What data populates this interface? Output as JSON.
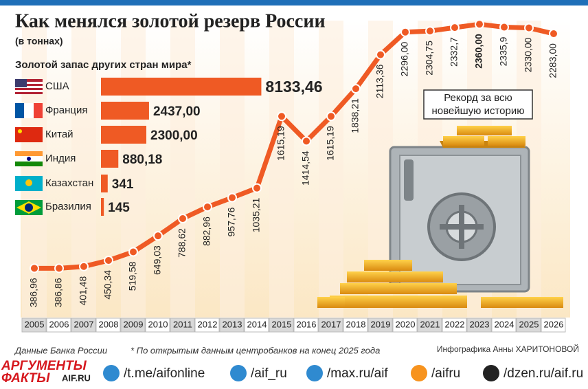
{
  "chart_data": [
    {
      "type": "line",
      "title": "Как менялся золотой резерв России",
      "subtitle": "(в тоннах)",
      "categories": [
        "2005",
        "2006",
        "2007",
        "2008",
        "2009",
        "2010",
        "2011",
        "2012",
        "2013",
        "2014",
        "2015",
        "2016",
        "2017",
        "2018",
        "2019",
        "2020",
        "2021",
        "2022",
        "2023",
        "2024",
        "2025",
        "2026"
      ],
      "series": [
        {
          "color": "#ef5a24",
          "values": [
            386.96,
            386.86,
            401.48,
            450.34,
            519.58,
            649.03,
            788.62,
            882.96,
            957.76,
            1035.21,
            1615.19,
            1414.54,
            1615.19,
            1838.21,
            2113.36,
            2296.0,
            2304.75,
            2332.7,
            2360.0,
            2335.9,
            2330.0,
            2283.0
          ],
          "value_labels": [
            "386,96",
            "386,86",
            "401,48",
            "450,34",
            "519,58",
            "649,03",
            "788,62",
            "882,96",
            "957,76",
            "1035,21",
            "1615,19",
            "1414,54",
            "1615,19",
            "1838,21",
            "2113,36",
            "2296,00",
            "2304,75",
            "2332,7",
            "2360,00",
            "2335,9",
            "2330,00",
            "2283,00"
          ]
        }
      ],
      "annotation": [
        "Рекорд за всю",
        "новейшую историю"
      ]
    },
    {
      "type": "hbar",
      "title": "Золотой запас других стран мира*",
      "color": "#ef5a24",
      "categories": [
        "США",
        "Франция",
        "Китай",
        "Индия",
        "Казахстан",
        "Бразилия"
      ],
      "values": [
        8133.46,
        2437.0,
        2300.0,
        880.18,
        341,
        145
      ],
      "value_labels": [
        "8133,46",
        "2437,00",
        "2300,00",
        "880,18",
        "341",
        "145"
      ]
    }
  ],
  "footer": {
    "source": "Данные Банка России",
    "note": "* По открытым данным центробанков на конец 2025 года",
    "author": "Инфографика Анны ХАРИТОНОВОЙ"
  },
  "logo": {
    "line1": "АРГУМЕНТЫ",
    "line2": "ФАКТЫ",
    "site": "AIF.RU"
  },
  "social": [
    "/t.me/aifonline",
    "/aif_ru",
    "/max.ru/aif",
    "/aifru",
    "/dzen.ru/aif.ru"
  ]
}
